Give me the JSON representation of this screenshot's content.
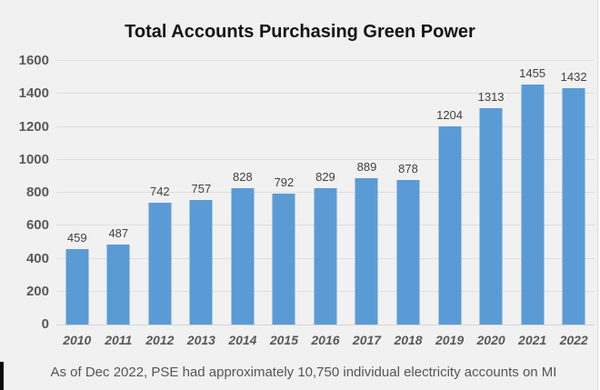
{
  "title": "Total Accounts Purchasing Green Power",
  "caption": "As of Dec 2022, PSE had approximately 10,750 individual electricity accounts on MI",
  "colors": {
    "bar": "#5b9bd5",
    "background": "#f1f1f1",
    "gridline": "#dedede",
    "axis_text": "#595959",
    "value_text": "#3f3f3f",
    "title_text": "#141414"
  },
  "chart_data": {
    "type": "bar",
    "title": "Total Accounts Purchasing Green Power",
    "categories": [
      "2010",
      "2011",
      "2012",
      "2013",
      "2014",
      "2015",
      "2016",
      "2017",
      "2018",
      "2019",
      "2020",
      "2021",
      "2022"
    ],
    "values": [
      459,
      487,
      742,
      757,
      828,
      792,
      829,
      889,
      878,
      1204,
      1313,
      1455,
      1432
    ],
    "xlabel": "",
    "ylabel": "",
    "ylim": [
      0,
      1600
    ],
    "yticks": [
      0,
      200,
      400,
      600,
      800,
      1000,
      1200,
      1400,
      1600
    ],
    "grid": true,
    "legend_position": "none",
    "data_labels": true
  }
}
